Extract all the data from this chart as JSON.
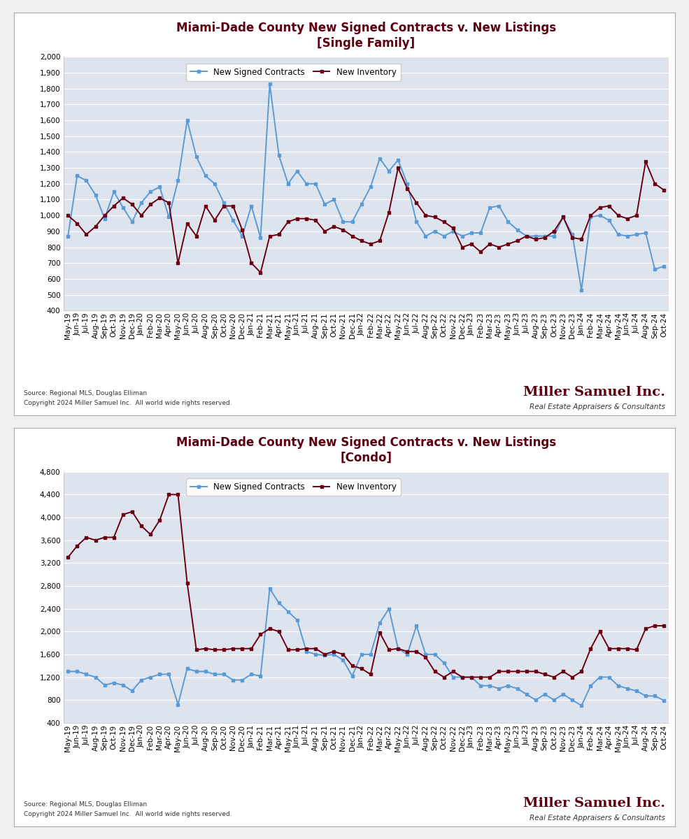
{
  "title1": "Miami-Dade County New Signed Contracts v. New Listings",
  "subtitle1": "[Single Family]",
  "title2": "Miami-Dade County New Signed Contracts v. New Listings",
  "subtitle2": "[Condo]",
  "legend_contracts": "New Signed Contracts",
  "legend_inventory": "New Inventory",
  "color_contracts": "#5B9BD5",
  "color_inventory": "#6B0010",
  "source_line1": "Source: Regional MLS, Douglas Elliman",
  "source_line2": "Copyright 2024 Miller Samuel Inc.  All world wide rights reserved.",
  "miller_samuel": "Miller Samuel Inc.",
  "miller_tagline": "Real Estate Appraisers & Consultants",
  "x_labels": [
    "May-19",
    "Jun-19",
    "Jul-19",
    "Aug-19",
    "Sep-19",
    "Oct-19",
    "Nov-19",
    "Dec-19",
    "Jan-20",
    "Feb-20",
    "Mar-20",
    "Apr-20",
    "May-20",
    "Jun-20",
    "Jul-20",
    "Aug-20",
    "Sep-20",
    "Oct-20",
    "Nov-20",
    "Dec-20",
    "Jan-21",
    "Feb-21",
    "Mar-21",
    "Apr-21",
    "May-21",
    "Jun-21",
    "Jul-21",
    "Aug-21",
    "Sep-21",
    "Oct-21",
    "Nov-21",
    "Dec-21",
    "Jan-22",
    "Feb-22",
    "Mar-22",
    "Apr-22",
    "May-22",
    "Jun-22",
    "Jul-22",
    "Aug-22",
    "Sep-22",
    "Oct-22",
    "Nov-22",
    "Dec-22",
    "Jan-23",
    "Feb-23",
    "Mar-23",
    "Apr-23",
    "May-23",
    "Jun-23",
    "Jul-23",
    "Aug-23",
    "Sep-23",
    "Oct-23",
    "Nov-23",
    "Dec-23",
    "Jan-24",
    "Feb-24",
    "Mar-24",
    "Apr-24",
    "May-24",
    "Jun-24",
    "Jul-24",
    "Aug-24",
    "Sep-24",
    "Oct-24"
  ],
  "sf_contracts": [
    870,
    1250,
    1220,
    1130,
    980,
    1150,
    1050,
    960,
    1080,
    1150,
    1180,
    990,
    1220,
    1600,
    1370,
    1250,
    1200,
    1080,
    970,
    870,
    1060,
    860,
    1830,
    1380,
    1200,
    1280,
    1200,
    1200,
    1070,
    1100,
    960,
    960,
    1070,
    1180,
    1360,
    1280,
    1350,
    1200,
    960,
    870,
    900,
    870,
    900,
    870,
    890,
    890,
    1050,
    1060,
    960,
    910,
    870,
    870,
    870,
    870,
    990,
    880,
    530,
    990,
    1000,
    970,
    880,
    870,
    880,
    890,
    660,
    680
  ],
  "sf_inventory": [
    1000,
    950,
    880,
    930,
    1000,
    1060,
    1110,
    1070,
    1000,
    1070,
    1110,
    1080,
    700,
    950,
    870,
    1060,
    970,
    1060,
    1060,
    910,
    700,
    640,
    870,
    880,
    960,
    980,
    980,
    970,
    900,
    930,
    910,
    870,
    840,
    820,
    840,
    1020,
    1300,
    1170,
    1080,
    1000,
    990,
    960,
    920,
    800,
    820,
    770,
    820,
    800,
    820,
    840,
    870,
    850,
    860,
    900,
    990,
    860,
    850,
    1000,
    1050,
    1060,
    1000,
    980,
    1000,
    1340,
    1200,
    1160
  ],
  "condo_contracts": [
    1300,
    1300,
    1250,
    1200,
    1060,
    1100,
    1060,
    960,
    1150,
    1200,
    1250,
    1250,
    720,
    1350,
    1300,
    1300,
    1250,
    1250,
    1150,
    1150,
    1250,
    1220,
    2750,
    2500,
    2350,
    2200,
    1650,
    1600,
    1580,
    1600,
    1500,
    1220,
    1600,
    1600,
    2150,
    2400,
    1700,
    1600,
    2100,
    1600,
    1600,
    1450,
    1200,
    1200,
    1200,
    1050,
    1050,
    1000,
    1050,
    1000,
    900,
    800,
    900,
    800,
    900,
    800,
    700,
    1050,
    1200,
    1200,
    1050,
    1000,
    960,
    870,
    870,
    790
  ],
  "condo_inventory": [
    3300,
    3500,
    3650,
    3600,
    3650,
    3650,
    4050,
    4100,
    3850,
    3700,
    3950,
    4400,
    4400,
    2850,
    1680,
    1700,
    1680,
    1680,
    1700,
    1700,
    1700,
    1950,
    2050,
    2000,
    1680,
    1680,
    1700,
    1700,
    1600,
    1650,
    1600,
    1400,
    1350,
    1250,
    1980,
    1680,
    1700,
    1650,
    1650,
    1550,
    1300,
    1200,
    1300,
    1200,
    1200,
    1200,
    1200,
    1300,
    1300,
    1300,
    1300,
    1300,
    1250,
    1200,
    1300,
    1200,
    1300,
    1700,
    2000,
    1700,
    1700,
    1700,
    1680,
    2050,
    2100,
    2100
  ],
  "sf_ylim": [
    400,
    2000
  ],
  "sf_yticks": [
    400,
    500,
    600,
    700,
    800,
    900,
    1000,
    1100,
    1200,
    1300,
    1400,
    1500,
    1600,
    1700,
    1800,
    1900,
    2000
  ],
  "condo_ylim": [
    400,
    4800
  ],
  "condo_yticks": [
    400,
    800,
    1200,
    1600,
    2000,
    2400,
    2800,
    3200,
    3600,
    4000,
    4400,
    4800
  ],
  "bg_color": "#F0F0F0",
  "panel_bg": "#FFFFFF",
  "plot_bg_color": "#DDE4EE",
  "grid_color": "#FFFFFF",
  "title_color": "#5C0010",
  "title_fontsize": 12,
  "tick_fontsize": 7.5,
  "legend_fontsize": 8.5
}
